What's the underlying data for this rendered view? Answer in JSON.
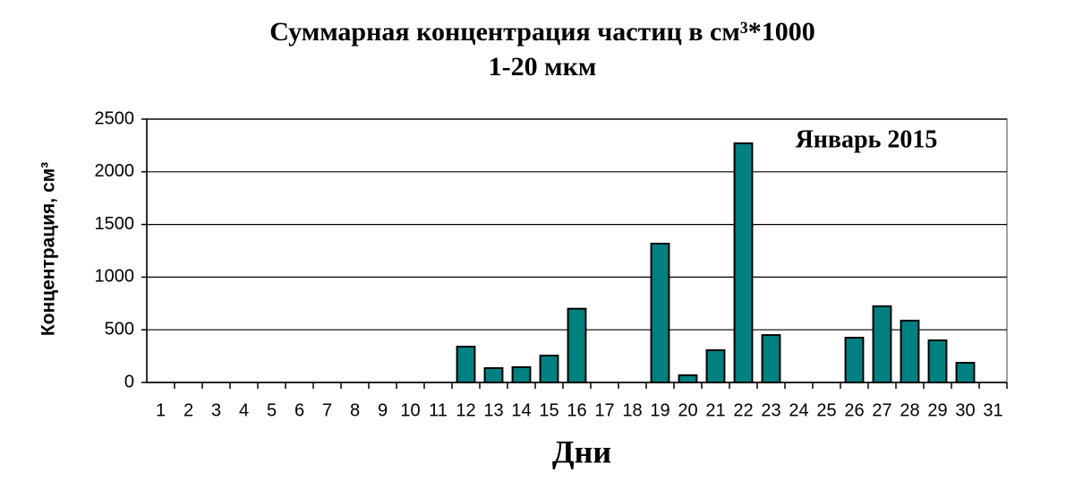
{
  "chart_data": {
    "type": "bar",
    "title": "Суммарная концентрация частиц в см³*1000",
    "subtitle": "1-20 мкм",
    "annotation": "Январь 2015",
    "x_label": "Дни",
    "y_label": "Концентрация, см³",
    "categories": [
      "1",
      "2",
      "3",
      "4",
      "5",
      "6",
      "7",
      "8",
      "9",
      "10",
      "11",
      "12",
      "13",
      "14",
      "15",
      "16",
      "17",
      "18",
      "19",
      "20",
      "21",
      "22",
      "23",
      "24",
      "25",
      "26",
      "27",
      "28",
      "29",
      "30",
      "31"
    ],
    "values": [
      0,
      0,
      0,
      0,
      0,
      0,
      0,
      0,
      0,
      0,
      0,
      340,
      136,
      145,
      255,
      700,
      0,
      0,
      1318,
      68,
      306,
      2270,
      450,
      0,
      0,
      425,
      723,
      587,
      400,
      187,
      0
    ],
    "color": "#008080",
    "ylim": [
      0,
      2500
    ],
    "yticks": [
      0,
      500,
      1000,
      1500,
      2000,
      2500
    ],
    "grid": true
  }
}
